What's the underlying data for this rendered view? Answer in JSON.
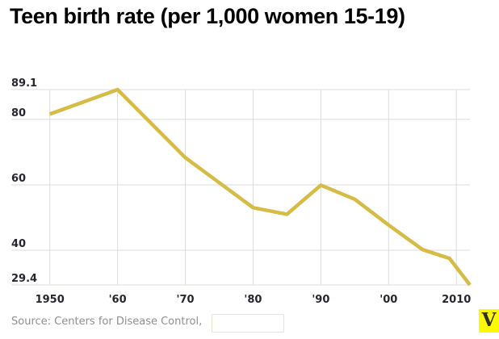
{
  "header": {
    "title": "Teen birth rate (per 1,000 women 15-19)"
  },
  "footer": {
    "source_label": "Source: Centers for Disease Control,",
    "logo_letter": "V"
  },
  "colors": {
    "title": "#000000",
    "line": "#d6bc45",
    "grid": "#dcdcdc",
    "tick_label": "#26262e",
    "source": "#8f8f8f",
    "logo_bg": "#fdf900",
    "logo_letter": "#2e2e2e",
    "highlight_box_border": "#ebe6c9"
  },
  "chart_data": {
    "type": "line",
    "title": "Teen birth rate (per 1,000 women 15-19)",
    "series_name": "teen-birth-rate",
    "x": [
      1950,
      1960,
      1970,
      1980,
      1985,
      1990,
      1995,
      2000,
      2005,
      2009,
      2012
    ],
    "values": [
      81.6,
      89.1,
      68.3,
      53.0,
      51.0,
      59.9,
      55.6,
      47.7,
      40.2,
      37.5,
      29.4
    ],
    "xlim": [
      1950,
      2012
    ],
    "ylim": [
      29.4,
      89.1
    ],
    "grid": true,
    "legend": false,
    "xlabel": "",
    "ylabel": "",
    "y_ticks": [
      {
        "value": 89.1,
        "label": "89.1"
      },
      {
        "value": 80,
        "label": "80"
      },
      {
        "value": 60,
        "label": "60"
      },
      {
        "value": 40,
        "label": "40"
      },
      {
        "value": 29.4,
        "label": "29.4"
      }
    ],
    "x_ticks": [
      {
        "year": 1950,
        "label": "1950"
      },
      {
        "year": 1960,
        "label": "'60"
      },
      {
        "year": 1970,
        "label": "'70"
      },
      {
        "year": 1980,
        "label": "'80"
      },
      {
        "year": 1990,
        "label": "'90"
      },
      {
        "year": 2000,
        "label": "'00"
      },
      {
        "year": 2010,
        "label": "2010"
      }
    ]
  }
}
